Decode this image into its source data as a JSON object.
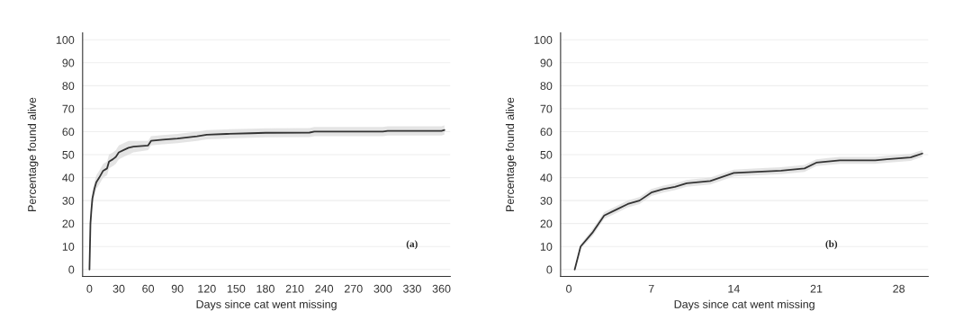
{
  "chart_data": [
    {
      "type": "line",
      "xlabel": "Days since cat went missing",
      "ylabel": "Percentage found alive",
      "annotations": [
        "(a)"
      ],
      "xlim": [
        -7,
        369
      ],
      "ylim": [
        -3,
        103
      ],
      "xticks": [
        0,
        30,
        60,
        90,
        120,
        150,
        180,
        210,
        240,
        270,
        300,
        330,
        360
      ],
      "yticks": [
        0,
        10,
        20,
        30,
        40,
        50,
        60,
        70,
        80,
        90,
        100
      ],
      "grid": "y",
      "legend": false,
      "series": [
        {
          "color": "#333333",
          "x": [
            0,
            0.5,
            1,
            2,
            3,
            5,
            7,
            10,
            14,
            18,
            20,
            24,
            27,
            30,
            35,
            40,
            45,
            60,
            63,
            75,
            90,
            110,
            120,
            140,
            165,
            180,
            225,
            230,
            300,
            305,
            360,
            363
          ],
          "values": [
            0,
            10,
            20,
            26,
            31,
            35,
            38,
            40,
            43,
            44,
            47,
            48,
            49,
            51,
            52,
            53,
            53.5,
            54,
            56,
            56.5,
            57,
            58,
            58.7,
            59,
            59.3,
            59.5,
            59.6,
            60,
            60,
            60.3,
            60.3,
            60.7
          ],
          "lower": [
            0,
            8,
            17,
            23,
            28,
            32,
            35,
            37,
            40,
            41,
            44,
            45,
            46,
            48,
            49,
            50,
            51,
            52,
            54,
            54.5,
            55,
            56,
            56.7,
            57,
            57.3,
            57.5,
            57.6,
            58,
            58,
            58.3,
            58.3,
            58.7
          ],
          "upper": [
            0,
            12,
            23,
            29,
            34,
            38,
            41,
            43,
            46,
            47,
            50,
            51,
            52,
            54,
            55,
            56,
            56,
            56,
            58,
            58.5,
            59,
            60,
            60.7,
            61,
            61.3,
            61.5,
            61.6,
            62,
            62,
            62.3,
            62.3,
            62.7
          ]
        }
      ]
    },
    {
      "type": "line",
      "xlabel": "Days since cat went missing",
      "ylabel": "Percentage found alive",
      "annotations": [
        "(b)"
      ],
      "xlim": [
        -0.7,
        30.5
      ],
      "ylim": [
        -3,
        103
      ],
      "xticks": [
        0,
        7,
        14,
        21,
        28
      ],
      "yticks": [
        0,
        10,
        20,
        30,
        40,
        50,
        60,
        70,
        80,
        90,
        100
      ],
      "grid": "y",
      "legend": false,
      "series": [
        {
          "color": "#333333",
          "x": [
            0.5,
            1,
            2,
            3,
            4,
            5,
            6,
            7,
            8,
            9,
            10,
            11,
            12,
            14,
            16,
            18,
            20,
            21,
            22,
            23,
            26,
            27,
            29,
            30
          ],
          "values": [
            0,
            10,
            16,
            23.5,
            26,
            28.5,
            30,
            33.5,
            35,
            36,
            37.5,
            38,
            38.5,
            42,
            42.5,
            43,
            44,
            46.5,
            47,
            47.5,
            47.5,
            48,
            48.8,
            50.5
          ],
          "lower": [
            0,
            9,
            14.5,
            22,
            24.5,
            27,
            28.5,
            32,
            33.5,
            34.5,
            36,
            36.5,
            37,
            40.5,
            41,
            41.5,
            42.5,
            45,
            45.5,
            46,
            46,
            46.5,
            47.3,
            49
          ],
          "upper": [
            0,
            11,
            17.5,
            25,
            27.5,
            30,
            31.5,
            35,
            36.5,
            37.5,
            39,
            39.5,
            40,
            43.5,
            44,
            44.5,
            45.5,
            48,
            48.5,
            49,
            49,
            49.5,
            50.3,
            52
          ]
        }
      ]
    }
  ]
}
